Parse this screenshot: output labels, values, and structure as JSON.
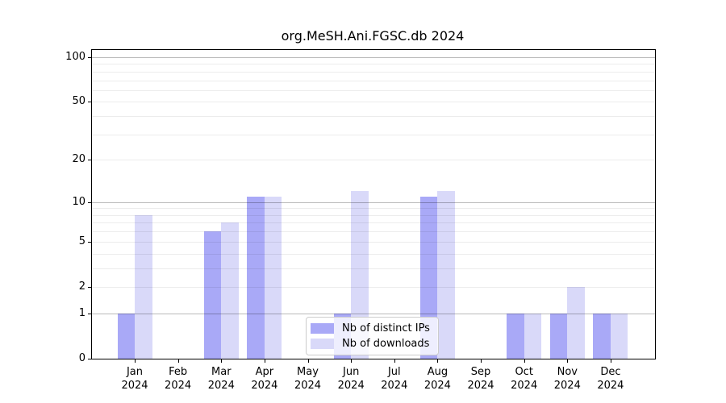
{
  "title": "org.MeSH.Ani.FGSC.db 2024",
  "chart_data": {
    "type": "bar",
    "title": "org.MeSH.Ani.FGSC.db 2024",
    "categories": [
      "Jan",
      "Feb",
      "Mar",
      "Apr",
      "May",
      "Jun",
      "Jul",
      "Aug",
      "Sep",
      "Oct",
      "Nov",
      "Dec"
    ],
    "year": "2024",
    "series": [
      {
        "name": "Nb of distinct IPs",
        "color": "#a9a9f7",
        "values": [
          1,
          0,
          6,
          11,
          0,
          1,
          0,
          11,
          0,
          1,
          1,
          1
        ]
      },
      {
        "name": "Nb of downloads",
        "color": "#d9d9f9",
        "values": [
          8,
          0,
          7,
          11,
          0,
          12,
          0,
          12,
          0,
          1,
          2,
          1
        ]
      }
    ],
    "xlabel": "",
    "ylabel": "",
    "yscale": "log1p",
    "ylim": [
      0,
      111.7
    ],
    "yticks": [
      0,
      1,
      2,
      5,
      10,
      20,
      50,
      100
    ],
    "major_gridlines": [
      1,
      10,
      100
    ],
    "minor_gridlines": [
      2,
      3,
      4,
      5,
      6,
      7,
      8,
      9,
      20,
      30,
      40,
      50,
      60,
      70,
      80,
      90
    ],
    "grid": true,
    "legend_position": "lower center"
  }
}
